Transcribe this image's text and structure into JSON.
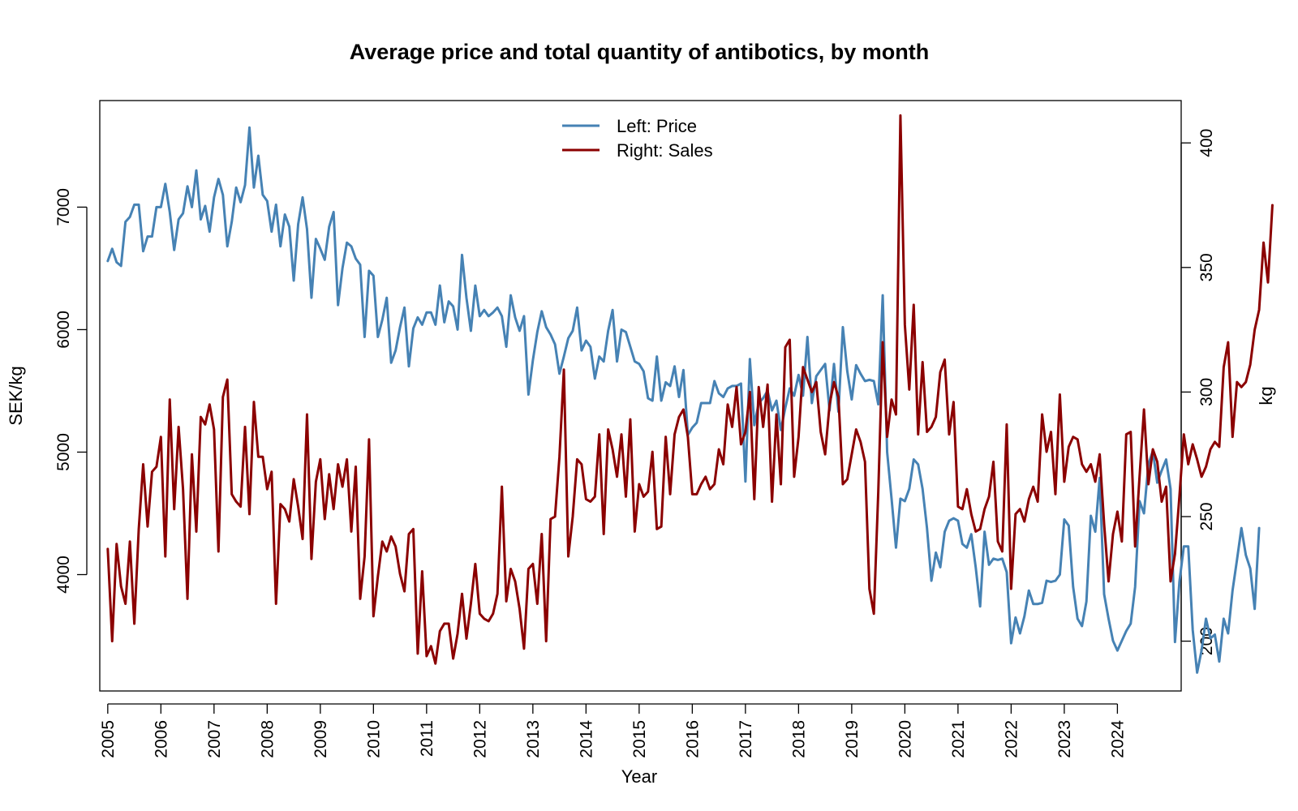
{
  "chart_data": {
    "type": "line",
    "title": "Average price and total quantity of antibotics, by month",
    "xlabel": "Year",
    "ylabel_left": "SEK/kg",
    "ylabel_right": "kg",
    "x_start": "2005-01",
    "x_step": "month",
    "x_ticks": [
      "2005",
      "2006",
      "2007",
      "2008",
      "2009",
      "2010",
      "2011",
      "2012",
      "2013",
      "2014",
      "2015",
      "2016",
      "2017",
      "2018",
      "2019",
      "2020",
      "2021",
      "2022",
      "2023",
      "2024"
    ],
    "xlim": [
      2004.85,
      2025.2
    ],
    "ylim_left": [
      3050,
      7870
    ],
    "ylim_right": [
      180,
      417
    ],
    "yticks_left": [
      4000,
      5000,
      6000,
      7000
    ],
    "yticks_right": [
      200,
      250,
      300,
      350,
      400
    ],
    "grid": false,
    "legend_position": "top-center",
    "legend": [
      "Left: Price",
      "Right: Sales"
    ],
    "series": [
      {
        "name": "Left: Price",
        "axis": "left",
        "color": "#4682B4",
        "values": [
          6560,
          6660,
          6550,
          6520,
          6880,
          6920,
          7020,
          7020,
          6640,
          6760,
          6760,
          7000,
          7000,
          7190,
          6960,
          6650,
          6900,
          6950,
          7170,
          7000,
          7300,
          6900,
          7010,
          6800,
          7080,
          7230,
          7100,
          6680,
          6880,
          7160,
          7040,
          7180,
          7650,
          7160,
          7420,
          7100,
          7050,
          6800,
          7020,
          6680,
          6940,
          6840,
          6400,
          6860,
          7080,
          6820,
          6260,
          6740,
          6660,
          6570,
          6840,
          6960,
          6200,
          6500,
          6710,
          6680,
          6580,
          6530,
          5940,
          6480,
          6440,
          5940,
          6080,
          6260,
          5730,
          5830,
          6020,
          6180,
          5700,
          6010,
          6100,
          6040,
          6140,
          6140,
          6040,
          6360,
          6060,
          6230,
          6190,
          6000,
          6610,
          6260,
          5990,
          6360,
          6110,
          6160,
          6110,
          6140,
          6180,
          6110,
          5860,
          6280,
          6100,
          5990,
          6110,
          5470,
          5750,
          5980,
          6150,
          6020,
          5960,
          5880,
          5640,
          5780,
          5930,
          5990,
          6180,
          5830,
          5910,
          5860,
          5600,
          5780,
          5740,
          5990,
          6160,
          5740,
          6000,
          5980,
          5860,
          5740,
          5720,
          5660,
          5440,
          5420,
          5780,
          5420,
          5570,
          5540,
          5700,
          5450,
          5670,
          5140,
          5200,
          5240,
          5400,
          5400,
          5400,
          5580,
          5480,
          5450,
          5520,
          5540,
          5540,
          5560,
          4760,
          5760,
          5220,
          5400,
          5440,
          5500,
          5340,
          5420,
          5180,
          5360,
          5520,
          5460,
          5630,
          5460,
          5940,
          5400,
          5620,
          5670,
          5720,
          5340,
          5720,
          5330,
          6020,
          5660,
          5430,
          5710,
          5640,
          5580,
          5590,
          5580,
          5390,
          6280,
          5000,
          4620,
          4220,
          4620,
          4600,
          4700,
          4940,
          4900,
          4700,
          4380,
          3950,
          4180,
          4060,
          4350,
          4440,
          4460,
          4440,
          4250,
          4220,
          4330,
          4060,
          3740,
          4350,
          4080,
          4130,
          4120,
          4130,
          4020,
          3440,
          3650,
          3520,
          3660,
          3870,
          3760,
          3760,
          3770,
          3950,
          3940,
          3950,
          4000,
          4450,
          4400,
          3900,
          3640,
          3580,
          3780,
          4480,
          4350,
          4790,
          3840,
          3640,
          3460,
          3380,
          3460,
          3540,
          3600,
          3900,
          4600,
          4500,
          4900,
          5010,
          4750,
          4850,
          4940,
          4700,
          3450,
          3940,
          4230,
          4230,
          3550,
          3200,
          3380,
          3640,
          3480,
          3510,
          3290,
          3640,
          3520,
          3870,
          4120,
          4380,
          4160,
          4050,
          3720,
          4380
        ]
      },
      {
        "name": "Right: Sales",
        "axis": "right",
        "color": "#8B0000",
        "values": [
          237,
          200,
          239,
          222,
          215,
          240,
          207,
          245,
          271,
          246,
          268,
          270,
          282,
          234,
          297,
          253,
          286,
          261,
          217,
          275,
          244,
          290,
          287,
          295,
          285,
          236,
          298,
          305,
          259,
          256,
          254,
          286,
          251,
          296,
          274,
          274,
          261,
          268,
          215,
          255,
          253,
          248,
          265,
          254,
          241,
          291,
          233,
          264,
          273,
          249,
          267,
          253,
          271,
          262,
          273,
          244,
          270,
          217,
          234,
          281,
          210,
          226,
          240,
          236,
          242,
          238,
          227,
          220,
          243,
          245,
          195,
          228,
          194,
          198,
          191,
          204,
          207,
          207,
          193,
          203,
          219,
          201,
          215,
          231,
          211,
          209,
          208,
          211,
          219,
          262,
          216,
          229,
          224,
          213,
          197,
          229,
          231,
          215,
          243,
          200,
          249,
          250,
          274,
          309,
          234,
          250,
          273,
          271,
          257,
          256,
          258,
          283,
          243,
          285,
          277,
          266,
          283,
          258,
          289,
          244,
          263,
          258,
          260,
          276,
          245,
          246,
          282,
          259,
          283,
          290,
          293,
          282,
          259,
          259,
          263,
          266,
          261,
          263,
          277,
          271,
          295,
          286,
          302,
          279,
          284,
          300,
          257,
          302,
          286,
          303,
          256,
          291,
          263,
          318,
          321,
          266,
          282,
          310,
          305,
          300,
          304,
          284,
          275,
          295,
          304,
          298,
          263,
          265,
          275,
          285,
          280,
          272,
          221,
          211,
          260,
          320,
          282,
          297,
          291,
          411,
          327,
          301,
          335,
          283,
          312,
          284,
          286,
          290,
          308,
          313,
          283,
          296,
          254,
          253,
          261,
          251,
          244,
          245,
          253,
          258,
          272,
          240,
          236,
          287,
          221,
          251,
          253,
          248,
          257,
          262,
          256,
          291,
          276,
          284,
          259,
          299,
          264,
          278,
          282,
          281,
          271,
          268,
          271,
          264,
          275,
          247,
          224,
          243,
          252,
          240,
          283,
          284,
          238,
          266,
          293,
          263,
          277,
          272,
          256,
          262,
          224,
          235,
          258,
          283,
          271,
          279,
          273,
          266,
          270,
          277,
          280,
          278,
          310,
          320,
          282,
          304,
          302,
          304,
          311,
          325,
          333,
          360,
          344,
          375
        ]
      }
    ]
  }
}
